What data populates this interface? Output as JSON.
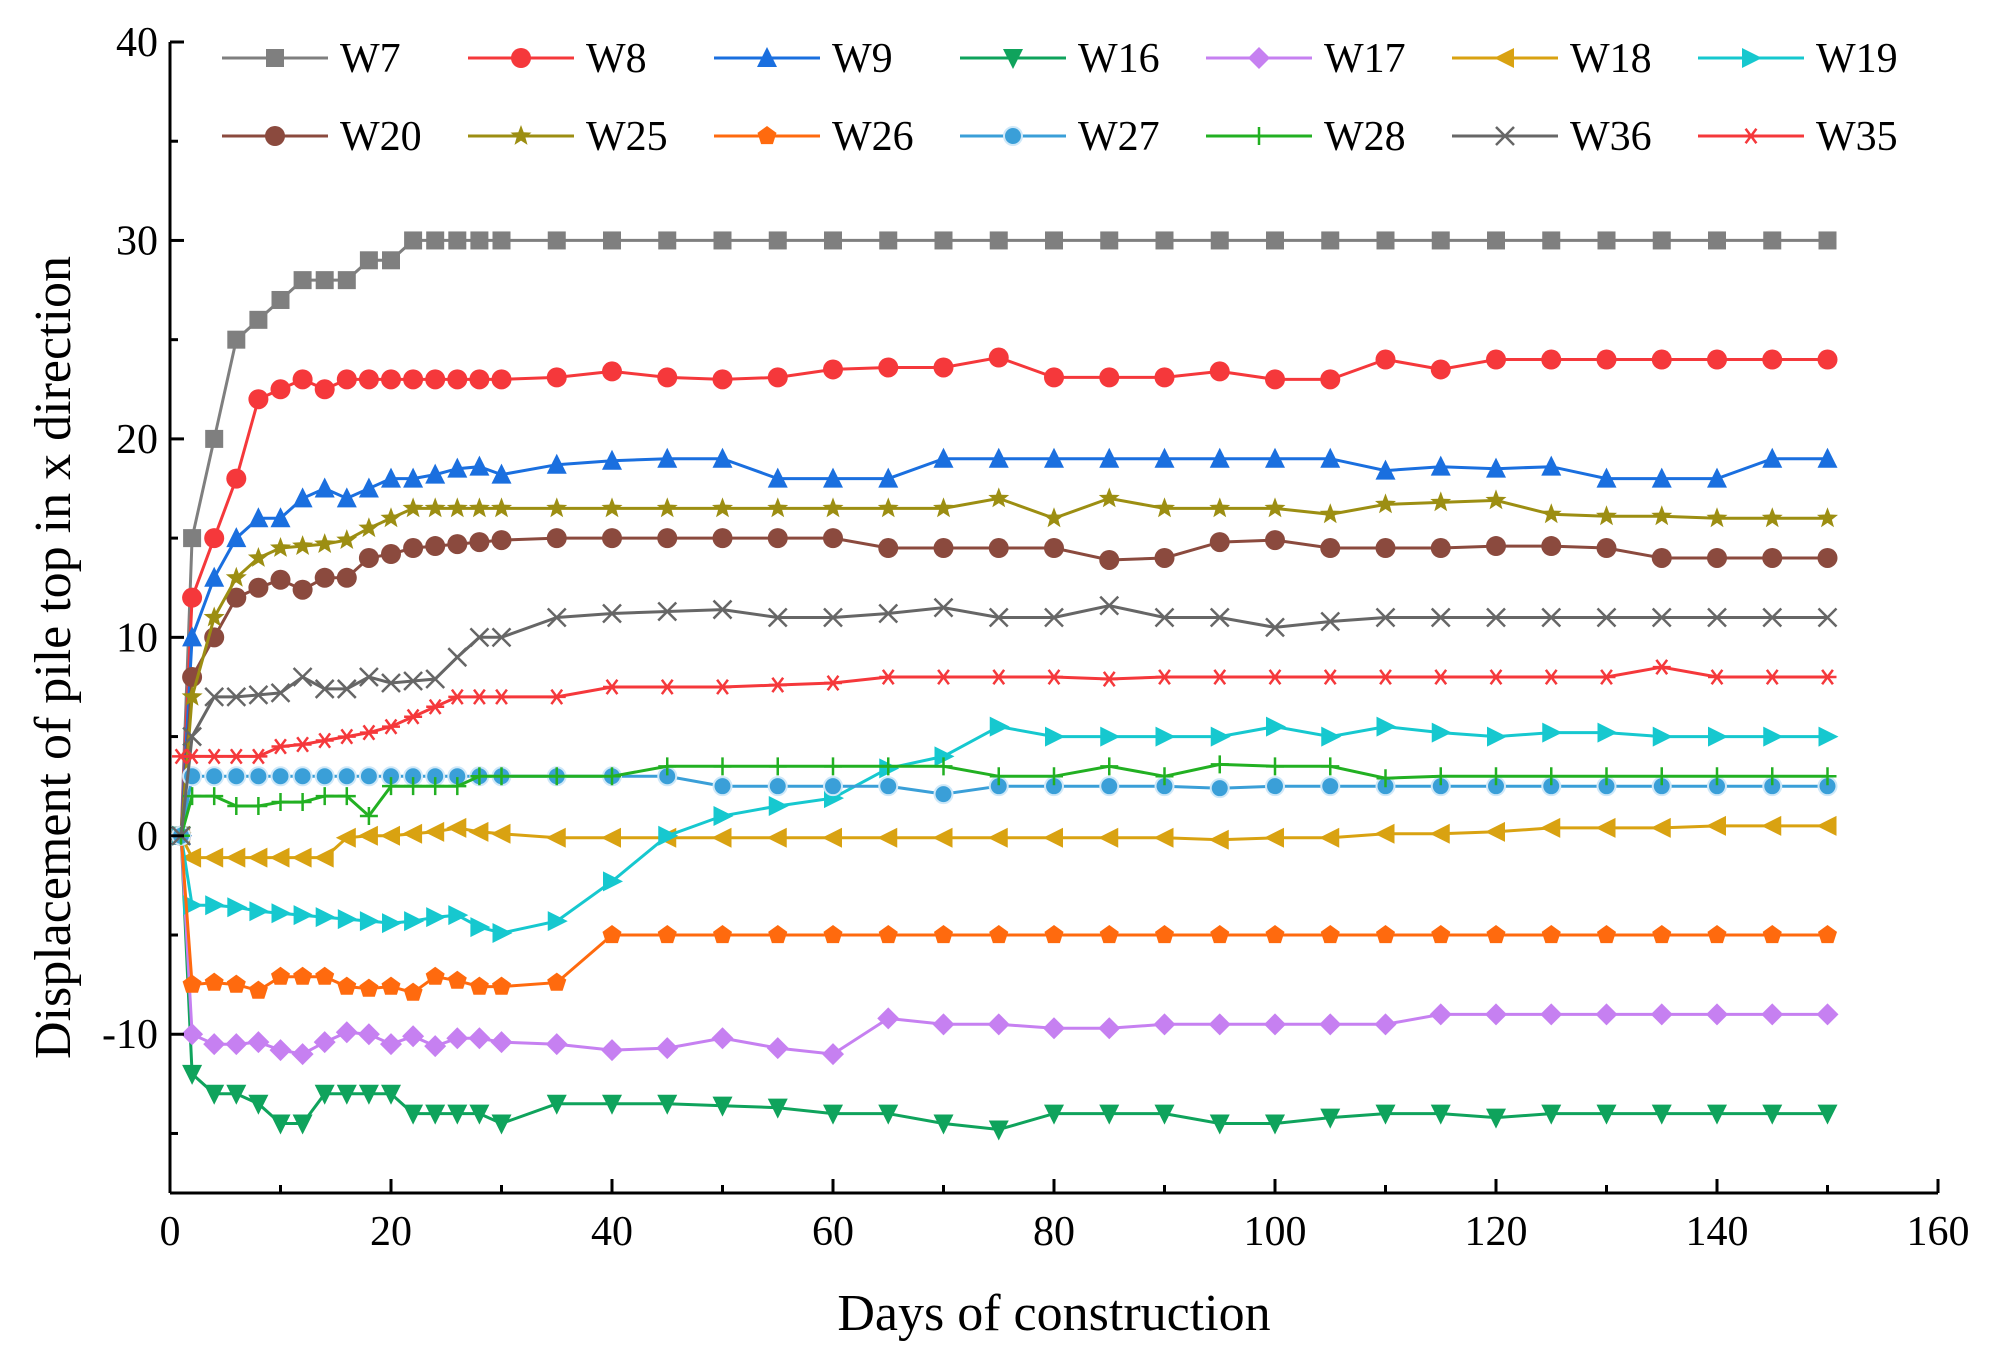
{
  "chart_data": {
    "type": "line",
    "title": "",
    "xlabel": "Days of construction",
    "ylabel": "Displacement of pile top in x direction",
    "xlim": [
      0,
      160
    ],
    "ylim": [
      -18,
      40
    ],
    "xticks": [
      0,
      20,
      40,
      60,
      80,
      100,
      120,
      140,
      160
    ],
    "yticks": [
      -10,
      0,
      10,
      20,
      30,
      40
    ],
    "legend_position": "top",
    "x": [
      1,
      2,
      4,
      6,
      8,
      10,
      12,
      14,
      16,
      18,
      20,
      22,
      24,
      26,
      28,
      30,
      35,
      40,
      45,
      50,
      55,
      60,
      65,
      70,
      75,
      80,
      85,
      90,
      95,
      100,
      105,
      110,
      115,
      120,
      125,
      130,
      135,
      140,
      145,
      150
    ],
    "series": [
      {
        "name": "W7",
        "color": "#7f7f7f",
        "marker": "square",
        "values": [
          0,
          15,
          20,
          25,
          26,
          27,
          28,
          28,
          28,
          29,
          29,
          30,
          30,
          30,
          30,
          30,
          30,
          30,
          30,
          30,
          30,
          30,
          30,
          30,
          30,
          30,
          30,
          30,
          30,
          30,
          30,
          30,
          30,
          30,
          30,
          30,
          30,
          30,
          30,
          30
        ]
      },
      {
        "name": "W8",
        "color": "#f5383b",
        "marker": "circle",
        "values": [
          0,
          12,
          15,
          18,
          22,
          22.5,
          23,
          22.5,
          23,
          23,
          23,
          23,
          23,
          23,
          23,
          23,
          23.1,
          23.4,
          23.1,
          23,
          23.1,
          23.5,
          23.6,
          23.6,
          24.1,
          23.1,
          23.1,
          23.1,
          23.4,
          23,
          23,
          24,
          23.5,
          24,
          24,
          24,
          24,
          24,
          24,
          24
        ]
      },
      {
        "name": "W9",
        "color": "#1a6fdf",
        "marker": "triangle-up",
        "values": [
          0,
          10,
          13,
          15,
          16,
          16,
          17,
          17.5,
          17,
          17.5,
          18,
          18,
          18.2,
          18.5,
          18.6,
          18.2,
          18.7,
          18.9,
          19,
          19,
          18,
          18,
          18,
          19,
          19,
          19,
          19,
          19,
          19,
          19,
          19,
          18.4,
          18.6,
          18.5,
          18.6,
          18,
          18,
          18,
          19,
          19
        ]
      },
      {
        "name": "W16",
        "color": "#0fa35c",
        "marker": "triangle-down",
        "values": [
          0,
          -12,
          -13,
          -13,
          -13.5,
          -14.5,
          -14.5,
          -13,
          -13,
          -13,
          -13,
          -14,
          -14,
          -14,
          -14,
          -14.5,
          -13.5,
          -13.5,
          -13.5,
          -13.6,
          -13.7,
          -14,
          -14,
          -14.5,
          -14.8,
          -14,
          -14,
          -14,
          -14.5,
          -14.5,
          -14.2,
          -14,
          -14,
          -14.2,
          -14,
          -14,
          -14,
          -14,
          -14,
          -14
        ]
      },
      {
        "name": "W17",
        "color": "#c680f1",
        "marker": "diamond",
        "values": [
          0,
          -10,
          -10.5,
          -10.5,
          -10.4,
          -10.8,
          -11,
          -10.4,
          -9.9,
          -10,
          -10.5,
          -10.1,
          -10.6,
          -10.2,
          -10.2,
          -10.4,
          -10.5,
          -10.8,
          -10.7,
          -10.2,
          -10.7,
          -11,
          -9.2,
          -9.5,
          -9.5,
          -9.7,
          -9.7,
          -9.5,
          -9.5,
          -9.5,
          -9.5,
          -9.5,
          -9,
          -9,
          -9,
          -9,
          -9,
          -9,
          -9,
          -9
        ]
      },
      {
        "name": "W18",
        "color": "#d9a211",
        "marker": "triangle-left",
        "values": [
          0,
          -1.1,
          -1.1,
          -1.1,
          -1.1,
          -1.1,
          -1.1,
          -1.1,
          -0.1,
          0,
          0,
          0.1,
          0.2,
          0.4,
          0.2,
          0.1,
          -0.1,
          -0.1,
          -0.1,
          -0.1,
          -0.1,
          -0.1,
          -0.1,
          -0.1,
          -0.1,
          -0.1,
          -0.1,
          -0.1,
          -0.2,
          -0.1,
          -0.1,
          0.1,
          0.1,
          0.2,
          0.4,
          0.4,
          0.4,
          0.5,
          0.5,
          0.5
        ]
      },
      {
        "name": "W19",
        "color": "#16c8cf",
        "marker": "triangle-right",
        "values": [
          0,
          -3.5,
          -3.5,
          -3.6,
          -3.8,
          -3.9,
          -4,
          -4.1,
          -4.2,
          -4.3,
          -4.4,
          -4.3,
          -4.1,
          -4,
          -4.6,
          -4.9,
          -4.3,
          -2.3,
          0,
          1,
          1.5,
          1.9,
          3.4,
          4,
          5.5,
          5,
          5,
          5,
          5,
          5.5,
          5,
          5.5,
          5.2,
          5,
          5.2,
          5.2,
          5,
          5,
          5,
          5
        ]
      },
      {
        "name": "W20",
        "color": "#8b4a3e",
        "marker": "circle",
        "values": [
          0,
          8,
          10,
          12,
          12.5,
          12.9,
          12.4,
          13,
          13,
          14,
          14.2,
          14.5,
          14.6,
          14.7,
          14.8,
          14.9,
          15,
          15,
          15,
          15,
          15,
          15,
          14.5,
          14.5,
          14.5,
          14.5,
          13.9,
          14,
          14.8,
          14.9,
          14.5,
          14.5,
          14.5,
          14.6,
          14.6,
          14.5,
          14,
          14,
          14,
          14
        ]
      },
      {
        "name": "W25",
        "color": "#9c8e12",
        "marker": "star",
        "values": [
          0,
          7,
          11,
          13,
          14,
          14.5,
          14.6,
          14.7,
          14.9,
          15.5,
          16,
          16.5,
          16.5,
          16.5,
          16.5,
          16.5,
          16.5,
          16.5,
          16.5,
          16.5,
          16.5,
          16.5,
          16.5,
          16.5,
          17,
          16,
          17,
          16.5,
          16.5,
          16.5,
          16.2,
          16.7,
          16.8,
          16.9,
          16.2,
          16.1,
          16.1,
          16,
          16,
          16
        ]
      },
      {
        "name": "W26",
        "color": "#ff6a0e",
        "marker": "pentagon",
        "values": [
          0,
          -7.5,
          -7.4,
          -7.5,
          -7.8,
          -7.1,
          -7.1,
          -7.1,
          -7.6,
          -7.7,
          -7.6,
          -7.9,
          -7.1,
          -7.3,
          -7.6,
          -7.6,
          -7.4,
          -5,
          -5,
          -5,
          -5,
          -5,
          -5,
          -5,
          -5,
          -5,
          -5,
          -5,
          -5,
          -5,
          -5,
          -5,
          -5,
          -5,
          -5,
          -5,
          -5,
          -5,
          -5,
          -5
        ]
      },
      {
        "name": "W27",
        "color": "#3a9fd8",
        "marker": "sphere",
        "values": [
          0,
          3,
          3,
          3,
          3,
          3,
          3,
          3,
          3,
          3,
          3,
          3,
          3,
          3,
          3,
          3,
          3,
          3,
          3,
          2.5,
          2.5,
          2.5,
          2.5,
          2.1,
          2.5,
          2.5,
          2.5,
          2.5,
          2.4,
          2.5,
          2.5,
          2.5,
          2.5,
          2.5,
          2.5,
          2.5,
          2.5,
          2.5,
          2.5,
          2.5
        ]
      },
      {
        "name": "W28",
        "color": "#22b022",
        "marker": "plus",
        "values": [
          0,
          2,
          2,
          1.5,
          1.5,
          1.7,
          1.7,
          2,
          2,
          1,
          2.5,
          2.5,
          2.5,
          2.5,
          3,
          3,
          3,
          3,
          3.5,
          3.5,
          3.5,
          3.5,
          3.5,
          3.5,
          3,
          3,
          3.5,
          3,
          3.6,
          3.5,
          3.5,
          2.9,
          3,
          3,
          3,
          3,
          3,
          3,
          3,
          3
        ]
      },
      {
        "name": "W36",
        "color": "#666666",
        "marker": "x",
        "values": [
          0,
          5,
          7,
          7,
          7.1,
          7.2,
          8,
          7.4,
          7.4,
          8,
          7.7,
          7.8,
          7.9,
          9,
          10,
          10,
          11,
          11.2,
          11.3,
          11.4,
          11,
          11,
          11.2,
          11.5,
          11,
          11,
          11.6,
          11,
          11,
          10.5,
          10.8,
          11,
          11,
          11,
          11,
          11,
          11,
          11,
          11,
          11
        ]
      },
      {
        "name": "W35",
        "color": "#f5383b",
        "marker": "asterisk",
        "values": [
          4,
          4,
          4,
          4,
          4,
          4.5,
          4.6,
          4.8,
          5,
          5.2,
          5.5,
          6,
          6.5,
          7,
          7,
          7,
          7,
          7.5,
          7.5,
          7.5,
          7.6,
          7.7,
          8,
          8,
          8,
          8,
          7.9,
          8,
          8,
          8,
          8,
          8,
          8,
          8,
          8,
          8,
          8.5,
          8,
          8,
          8
        ]
      }
    ]
  }
}
